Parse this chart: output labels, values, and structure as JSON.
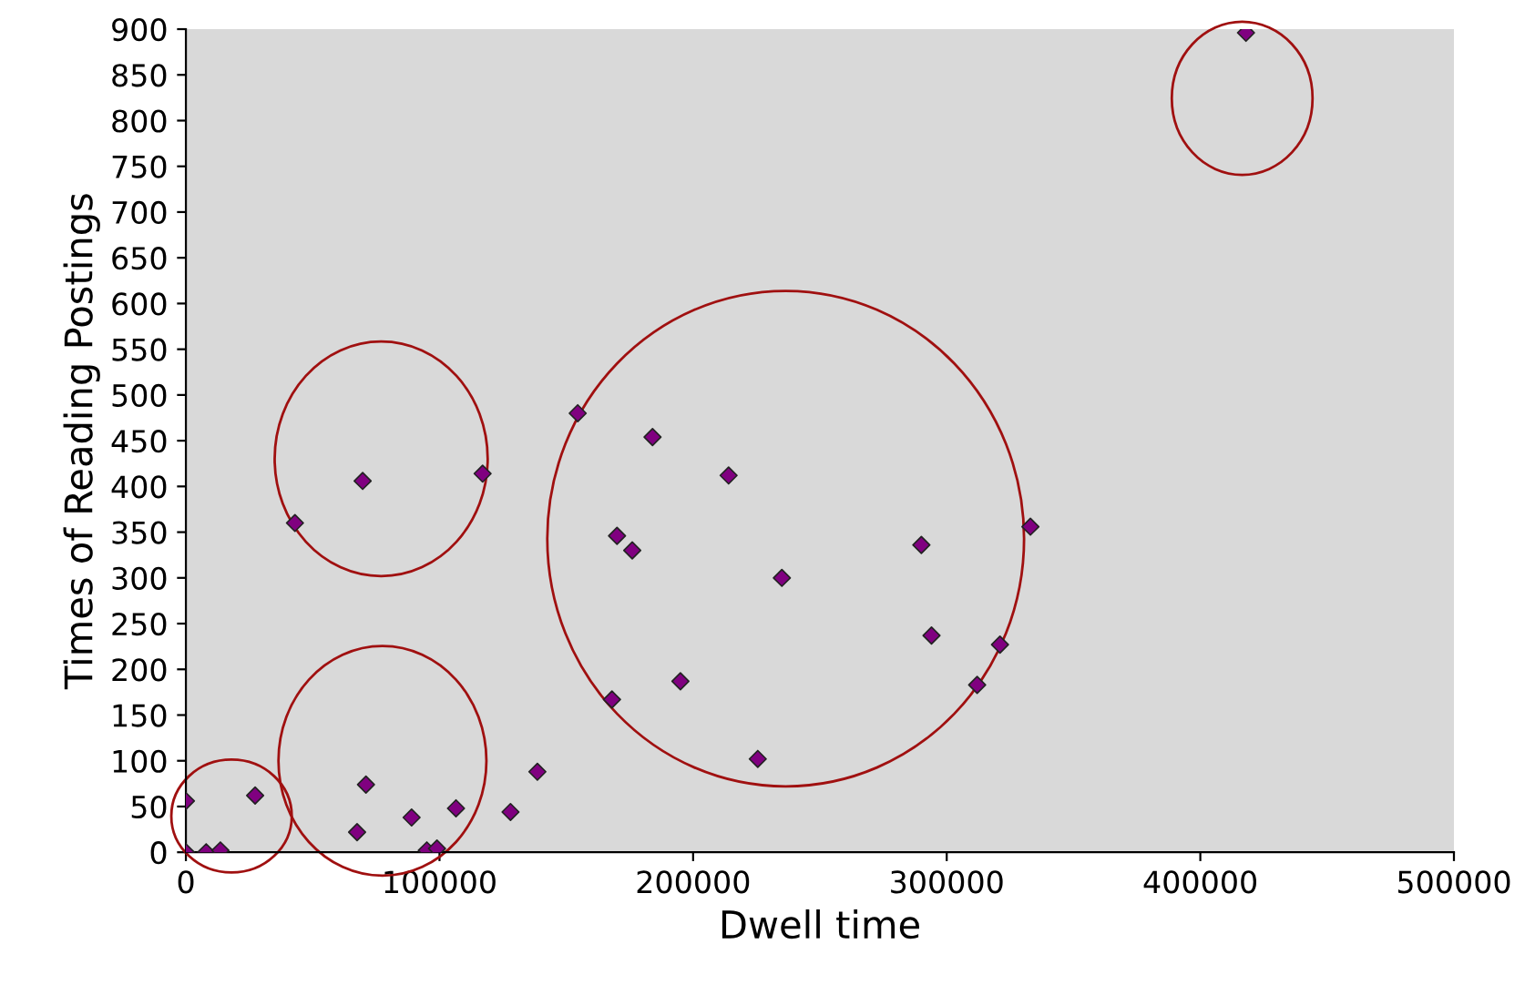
{
  "chart_data": {
    "type": "scatter",
    "xlabel": "Dwell time",
    "ylabel": "Times of Reading Postings",
    "x": [
      0,
      0,
      8000,
      13600,
      27300,
      43000,
      69700,
      117000,
      67500,
      71000,
      89000,
      95000,
      99000,
      106500,
      128000,
      138600,
      154500,
      184000,
      170000,
      176000,
      214000,
      235000,
      290000,
      294000,
      321000,
      312000,
      333000,
      195000,
      168000,
      225500,
      418000
    ],
    "values": [
      56,
      0,
      0,
      2,
      62,
      360,
      406,
      414,
      22,
      74,
      38,
      2,
      4,
      48,
      44,
      88,
      480,
      454,
      346,
      330,
      412,
      300,
      336,
      237,
      227,
      183,
      356,
      187,
      167,
      102,
      896
    ],
    "color": "#800080",
    "marker": "diamond",
    "grid": false,
    "xlim": [
      0,
      500000
    ],
    "xticks": [
      0,
      100000,
      200000,
      300000,
      400000,
      500000
    ],
    "ylim": [
      0,
      900
    ],
    "yticks": [
      0,
      50,
      100,
      150,
      200,
      250,
      300,
      350,
      400,
      450,
      500,
      550,
      600,
      650,
      700,
      750,
      800,
      850,
      900
    ]
  }
}
